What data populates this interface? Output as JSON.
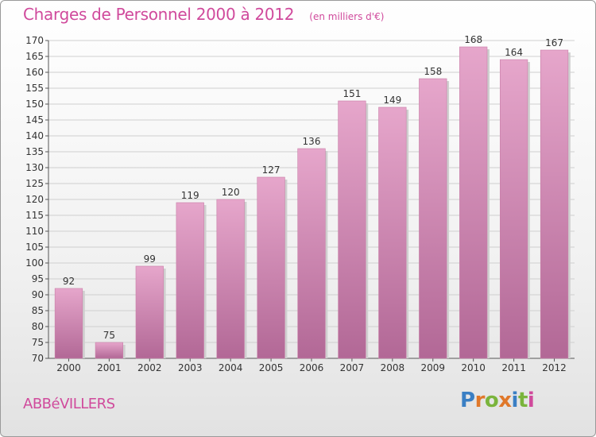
{
  "title": "Charges de Personnel 2000 à 2012",
  "subtitle": "(en milliers d'€)",
  "town": "ABBéVILLERS",
  "logo": {
    "text": "Proxiti",
    "colors": [
      "#3a7fc4",
      "#e0782a",
      "#7ab43c",
      "#e0782a",
      "#3a7fc4",
      "#7ab43c",
      "#d04a9c"
    ]
  },
  "colors": {
    "bar": "#c7709f",
    "bar_highlight": "#e6a6cb",
    "title": "#d04a9c",
    "grid": "#cfcfcf"
  },
  "chart_data": {
    "type": "bar",
    "categories": [
      "2000",
      "2001",
      "2002",
      "2003",
      "2004",
      "2005",
      "2006",
      "2007",
      "2008",
      "2009",
      "2010",
      "2011",
      "2012"
    ],
    "values": [
      92,
      75,
      99,
      119,
      120,
      127,
      136,
      151,
      149,
      158,
      168,
      164,
      167
    ],
    "title": "Charges de Personnel 2000 à 2012",
    "subtitle": "(en milliers d'€)",
    "xlabel": "",
    "ylabel": "",
    "ylim": [
      70,
      170
    ],
    "ytick_step": 5,
    "grid": true,
    "data_labels": true
  }
}
